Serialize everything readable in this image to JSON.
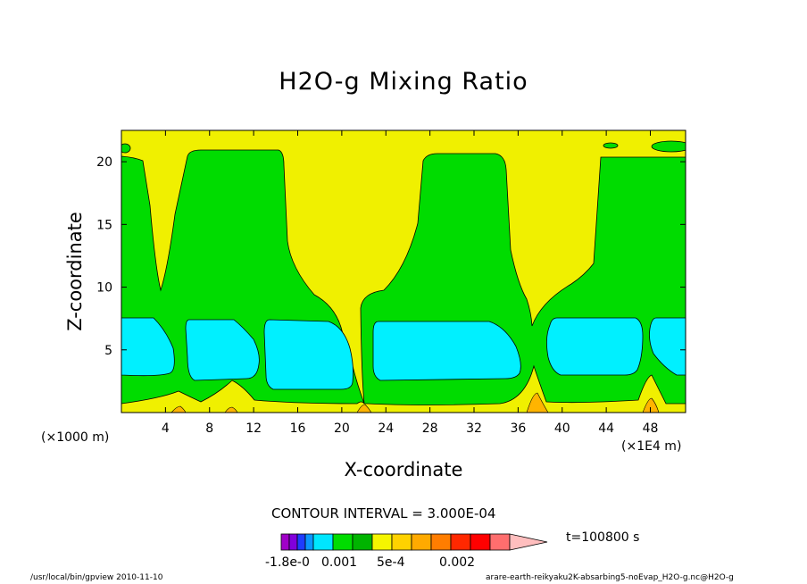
{
  "chart_data": {
    "type": "heatmap",
    "title": "H2O-g Mixing Ratio",
    "xlabel": "X-coordinate",
    "ylabel": "Z-coordinate",
    "x_unit_left": "(×1000 m)",
    "x_unit_right": "(×1E4 m)",
    "xlim": [
      0,
      51.2
    ],
    "ylim": [
      0,
      22.5
    ],
    "x_ticks": [
      4,
      8,
      12,
      16,
      20,
      24,
      28,
      32,
      36,
      40,
      44,
      48
    ],
    "y_ticks": [
      5,
      10,
      15,
      20
    ],
    "contour_interval_text": "CONTOUR INTERVAL = 3.000E-04",
    "time_label": "t=100800 s",
    "legend_labels": [
      "-1.8e-0",
      "0.001",
      "5e-4",
      "0.002"
    ],
    "colorbar_colors": [
      "#a000c8",
      "#8200dc",
      "#1e3cff",
      "#0a96ff",
      "#00e6ff",
      "#00dc00",
      "#00b400",
      "#f5f500",
      "#ffd200",
      "#ffaa00",
      "#ff7d00",
      "#ff2800",
      "#ff0000",
      "#ff6e6e",
      "#ffbebe"
    ],
    "field_colors": {
      "high": "#f0f000",
      "mid": "#00dc00",
      "low": "#00f0ff",
      "surface": "#ffb400",
      "surface_peak": "#ff7800"
    }
  },
  "footer": {
    "left": "/usr/local/bin/gpview  2010-11-10",
    "right": "arare-earth-reikyaku2K-absarbing5-noEvap_H2O-g.nc@H2O-g"
  }
}
